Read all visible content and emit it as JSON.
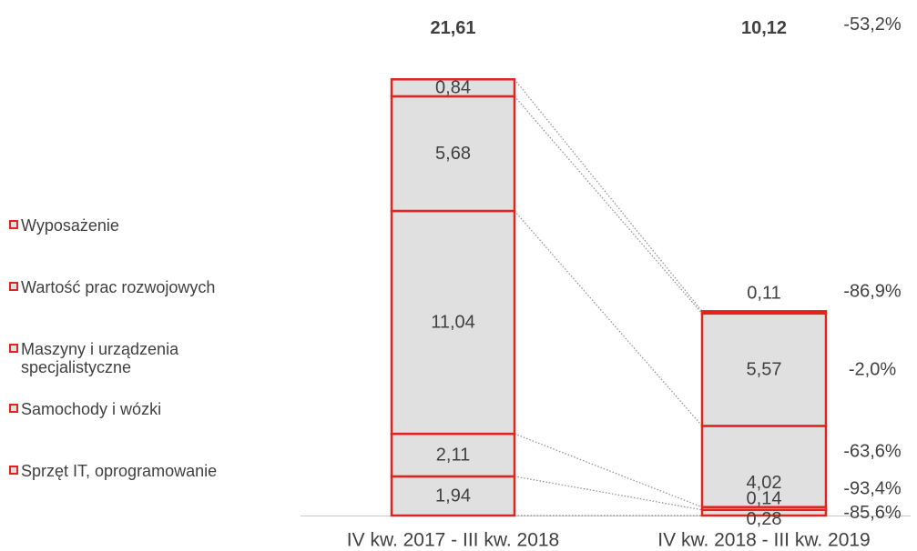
{
  "chart_data": {
    "type": "bar",
    "stacked": true,
    "categories": [
      "IV kw. 2017 - III kw. 2018",
      "IV kw. 2018 - III kw. 2019"
    ],
    "totals": [
      "21,61",
      "10,12"
    ],
    "total_change": "-53,2%",
    "series": [
      {
        "name": "Sprzęt IT, oprogramowanie",
        "values": [
          1.94,
          0.28
        ],
        "labels": [
          "1,94",
          "0,28"
        ],
        "change": "-85,6%"
      },
      {
        "name": "Samochody i wózki",
        "values": [
          2.11,
          0.14
        ],
        "labels": [
          "2,11",
          "0,14"
        ],
        "change": "-93,4%"
      },
      {
        "name": "Maszyny i urządzenia specjalistyczne",
        "values": [
          11.04,
          4.02
        ],
        "labels": [
          "11,04",
          "4,02"
        ],
        "change": "-63,6%"
      },
      {
        "name": "Wartość prac rozwojowych",
        "values": [
          5.68,
          5.57
        ],
        "labels": [
          "5,68",
          "5,57"
        ],
        "change": "-2,0%"
      },
      {
        "name": "Wyposażenie",
        "values": [
          0.84,
          0.11
        ],
        "labels": [
          "0,84",
          "0,11"
        ],
        "change": "-86,9%"
      }
    ],
    "legend": [
      "Wyposażenie",
      "Wartość prac rozwojowych",
      "Maszyny i urządzenia specjalistyczne",
      "Samochody i wózki",
      "Sprzęt IT, oprogramowanie"
    ],
    "legend_position": "left",
    "colors": {
      "fill": "#e0e0e0",
      "stroke": "#e0241f",
      "text": "#404040",
      "connector": "#8c8c8c",
      "axis": "#c8c8c8"
    }
  }
}
